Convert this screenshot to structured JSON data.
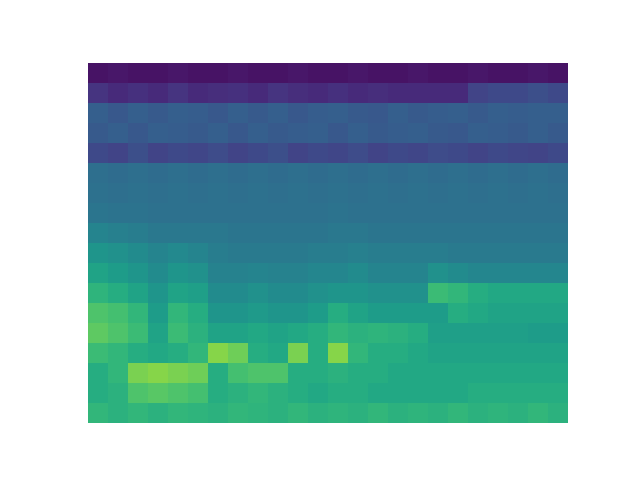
{
  "chart_data": {
    "type": "heatmap",
    "tick_labels": false,
    "color": "viridis",
    "zlim": [
      0,
      1
    ],
    "cells": [
      [
        0.05,
        0.06,
        0.05,
        0.05,
        0.06,
        0.05,
        0.05,
        0.06,
        0.05,
        0.05,
        0.06,
        0.05,
        0.05,
        0.06,
        0.05,
        0.05,
        0.06,
        0.05,
        0.05,
        0.06,
        0.05,
        0.05,
        0.06,
        0.05
      ],
      [
        0.15,
        0.12,
        0.14,
        0.12,
        0.15,
        0.12,
        0.13,
        0.14,
        0.12,
        0.15,
        0.13,
        0.12,
        0.14,
        0.12,
        0.13,
        0.12,
        0.12,
        0.12,
        0.12,
        0.2,
        0.22,
        0.22,
        0.24,
        0.22
      ],
      [
        0.3,
        0.27,
        0.3,
        0.28,
        0.3,
        0.29,
        0.27,
        0.3,
        0.28,
        0.3,
        0.27,
        0.29,
        0.3,
        0.28,
        0.27,
        0.3,
        0.28,
        0.29,
        0.3,
        0.28,
        0.3,
        0.29,
        0.3,
        0.3
      ],
      [
        0.28,
        0.3,
        0.27,
        0.3,
        0.29,
        0.28,
        0.3,
        0.27,
        0.3,
        0.28,
        0.29,
        0.3,
        0.27,
        0.3,
        0.28,
        0.29,
        0.3,
        0.28,
        0.27,
        0.3,
        0.29,
        0.28,
        0.3,
        0.28
      ],
      [
        0.22,
        0.2,
        0.24,
        0.2,
        0.22,
        0.21,
        0.23,
        0.2,
        0.22,
        0.24,
        0.2,
        0.22,
        0.21,
        0.23,
        0.2,
        0.22,
        0.21,
        0.23,
        0.22,
        0.2,
        0.22,
        0.21,
        0.2,
        0.22
      ],
      [
        0.36,
        0.35,
        0.36,
        0.35,
        0.36,
        0.35,
        0.36,
        0.35,
        0.36,
        0.35,
        0.36,
        0.35,
        0.36,
        0.35,
        0.36,
        0.35,
        0.36,
        0.35,
        0.36,
        0.35,
        0.36,
        0.35,
        0.36,
        0.35
      ],
      [
        0.37,
        0.36,
        0.37,
        0.36,
        0.37,
        0.36,
        0.37,
        0.36,
        0.37,
        0.36,
        0.37,
        0.36,
        0.37,
        0.36,
        0.37,
        0.36,
        0.37,
        0.36,
        0.37,
        0.36,
        0.37,
        0.36,
        0.37,
        0.36
      ],
      [
        0.39,
        0.38,
        0.38,
        0.37,
        0.37,
        0.37,
        0.37,
        0.37,
        0.37,
        0.37,
        0.37,
        0.37,
        0.38,
        0.37,
        0.37,
        0.37,
        0.37,
        0.37,
        0.37,
        0.37,
        0.37,
        0.37,
        0.37,
        0.37
      ],
      [
        0.45,
        0.43,
        0.42,
        0.4,
        0.4,
        0.4,
        0.4,
        0.39,
        0.39,
        0.39,
        0.39,
        0.39,
        0.4,
        0.4,
        0.39,
        0.39,
        0.39,
        0.39,
        0.39,
        0.39,
        0.39,
        0.39,
        0.39,
        0.39
      ],
      [
        0.52,
        0.5,
        0.48,
        0.45,
        0.47,
        0.45,
        0.42,
        0.41,
        0.41,
        0.41,
        0.41,
        0.42,
        0.42,
        0.43,
        0.42,
        0.42,
        0.42,
        0.42,
        0.41,
        0.41,
        0.41,
        0.41,
        0.41,
        0.41
      ],
      [
        0.58,
        0.55,
        0.52,
        0.48,
        0.52,
        0.5,
        0.44,
        0.44,
        0.45,
        0.44,
        0.44,
        0.46,
        0.46,
        0.48,
        0.45,
        0.45,
        0.45,
        0.5,
        0.48,
        0.46,
        0.46,
        0.46,
        0.46,
        0.46
      ],
      [
        0.65,
        0.62,
        0.58,
        0.52,
        0.58,
        0.56,
        0.48,
        0.48,
        0.5,
        0.48,
        0.48,
        0.5,
        0.52,
        0.52,
        0.5,
        0.5,
        0.5,
        0.68,
        0.66,
        0.62,
        0.6,
        0.6,
        0.6,
        0.6
      ],
      [
        0.72,
        0.7,
        0.66,
        0.55,
        0.66,
        0.62,
        0.52,
        0.52,
        0.54,
        0.52,
        0.52,
        0.55,
        0.62,
        0.58,
        0.55,
        0.55,
        0.55,
        0.55,
        0.62,
        0.6,
        0.58,
        0.58,
        0.58,
        0.58
      ],
      [
        0.75,
        0.72,
        0.68,
        0.58,
        0.68,
        0.64,
        0.58,
        0.58,
        0.6,
        0.58,
        0.6,
        0.62,
        0.66,
        0.64,
        0.65,
        0.64,
        0.62,
        0.56,
        0.56,
        0.56,
        0.56,
        0.56,
        0.55,
        0.55
      ],
      [
        0.68,
        0.66,
        0.62,
        0.6,
        0.62,
        0.66,
        0.82,
        0.78,
        0.62,
        0.6,
        0.8,
        0.62,
        0.82,
        0.66,
        0.62,
        0.62,
        0.6,
        0.58,
        0.58,
        0.58,
        0.58,
        0.58,
        0.58,
        0.58
      ],
      [
        0.62,
        0.66,
        0.8,
        0.82,
        0.8,
        0.78,
        0.62,
        0.7,
        0.72,
        0.72,
        0.62,
        0.62,
        0.64,
        0.62,
        0.62,
        0.6,
        0.6,
        0.6,
        0.6,
        0.6,
        0.6,
        0.6,
        0.6,
        0.6
      ],
      [
        0.62,
        0.64,
        0.72,
        0.74,
        0.72,
        0.7,
        0.62,
        0.64,
        0.66,
        0.64,
        0.62,
        0.6,
        0.62,
        0.62,
        0.6,
        0.6,
        0.6,
        0.6,
        0.6,
        0.62,
        0.62,
        0.62,
        0.62,
        0.62
      ],
      [
        0.66,
        0.64,
        0.66,
        0.64,
        0.66,
        0.65,
        0.64,
        0.66,
        0.65,
        0.64,
        0.66,
        0.64,
        0.65,
        0.64,
        0.66,
        0.64,
        0.65,
        0.64,
        0.66,
        0.64,
        0.65,
        0.64,
        0.66,
        0.64
      ]
    ]
  }
}
